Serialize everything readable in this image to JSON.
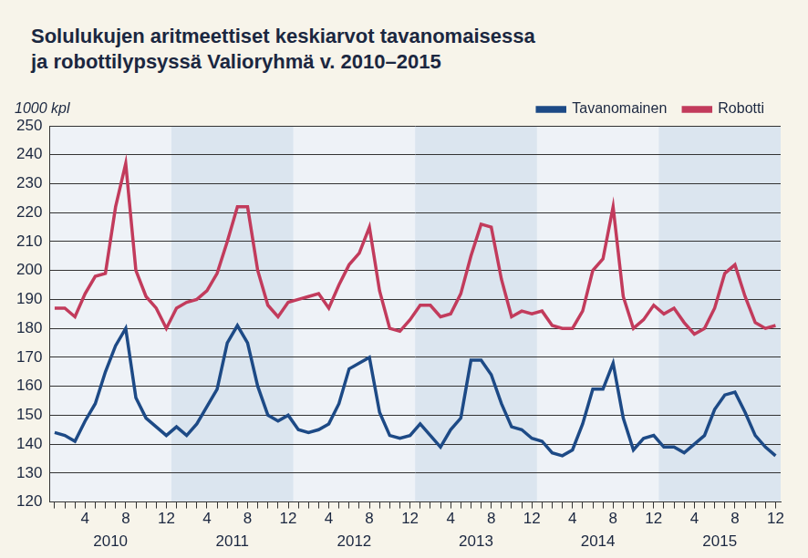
{
  "chart_data": {
    "type": "line",
    "title": "Solulukujen aritmeettiset keskiarvot tavanomaisessa\nja robottilypsyssä Valioryhmä  v. 2010–2015",
    "y_label": "1000 kpl",
    "categories": [
      null,
      null,
      null,
      "4",
      null,
      null,
      null,
      "8",
      null,
      null,
      null,
      "12",
      null,
      null,
      null,
      "4",
      null,
      null,
      null,
      "8",
      null,
      null,
      null,
      "12",
      null,
      null,
      null,
      "4",
      null,
      null,
      null,
      "8",
      null,
      null,
      null,
      "12",
      null,
      null,
      null,
      "4",
      null,
      null,
      null,
      "8",
      null,
      null,
      null,
      "12",
      null,
      null,
      null,
      "4",
      null,
      null,
      null,
      "8",
      null,
      null,
      null,
      "12",
      null,
      null,
      null,
      "4",
      null,
      null,
      null,
      "8",
      null,
      null,
      null,
      "12"
    ],
    "x_groups": [
      "2010",
      "2011",
      "2012",
      "2013",
      "2014",
      "2015"
    ],
    "series": [
      {
        "name": "Tavanomainen",
        "color": "#1d4a86",
        "values": [
          144,
          143,
          141,
          148,
          154,
          165,
          174,
          180,
          156,
          149,
          146,
          143,
          146,
          143,
          147,
          153,
          159,
          175,
          181,
          175,
          160,
          150,
          148,
          150,
          145,
          144,
          145,
          147,
          154,
          166,
          168,
          170,
          151,
          143,
          142,
          143,
          147,
          143,
          139,
          145,
          149,
          169,
          169,
          164,
          154,
          146,
          145,
          142,
          141,
          137,
          136,
          138,
          147,
          159,
          159,
          168,
          149,
          138,
          142,
          143,
          139,
          139,
          137,
          140,
          143,
          152,
          157,
          158,
          151,
          143,
          139,
          136
        ]
      },
      {
        "name": "Robotti",
        "color": "#c23b5c",
        "values": [
          187,
          187,
          184,
          192,
          198,
          199,
          222,
          237,
          200,
          191,
          187,
          180,
          187,
          189,
          190,
          193,
          199,
          210,
          222,
          222,
          200,
          188,
          184,
          189,
          190,
          191,
          192,
          187,
          195,
          202,
          206,
          215,
          193,
          180,
          179,
          183,
          188,
          188,
          184,
          185,
          192,
          205,
          216,
          215,
          197,
          184,
          186,
          185,
          186,
          181,
          180,
          180,
          186,
          200,
          204,
          222,
          191,
          180,
          183,
          188,
          185,
          187,
          182,
          178,
          180,
          187,
          199,
          202,
          191,
          182,
          180,
          181
        ]
      }
    ],
    "ylim": [
      120,
      250
    ],
    "yticks": [
      120,
      130,
      140,
      150,
      160,
      170,
      180,
      190,
      200,
      210,
      220,
      230,
      240,
      250
    ],
    "grid": true,
    "legend": "top-right"
  }
}
